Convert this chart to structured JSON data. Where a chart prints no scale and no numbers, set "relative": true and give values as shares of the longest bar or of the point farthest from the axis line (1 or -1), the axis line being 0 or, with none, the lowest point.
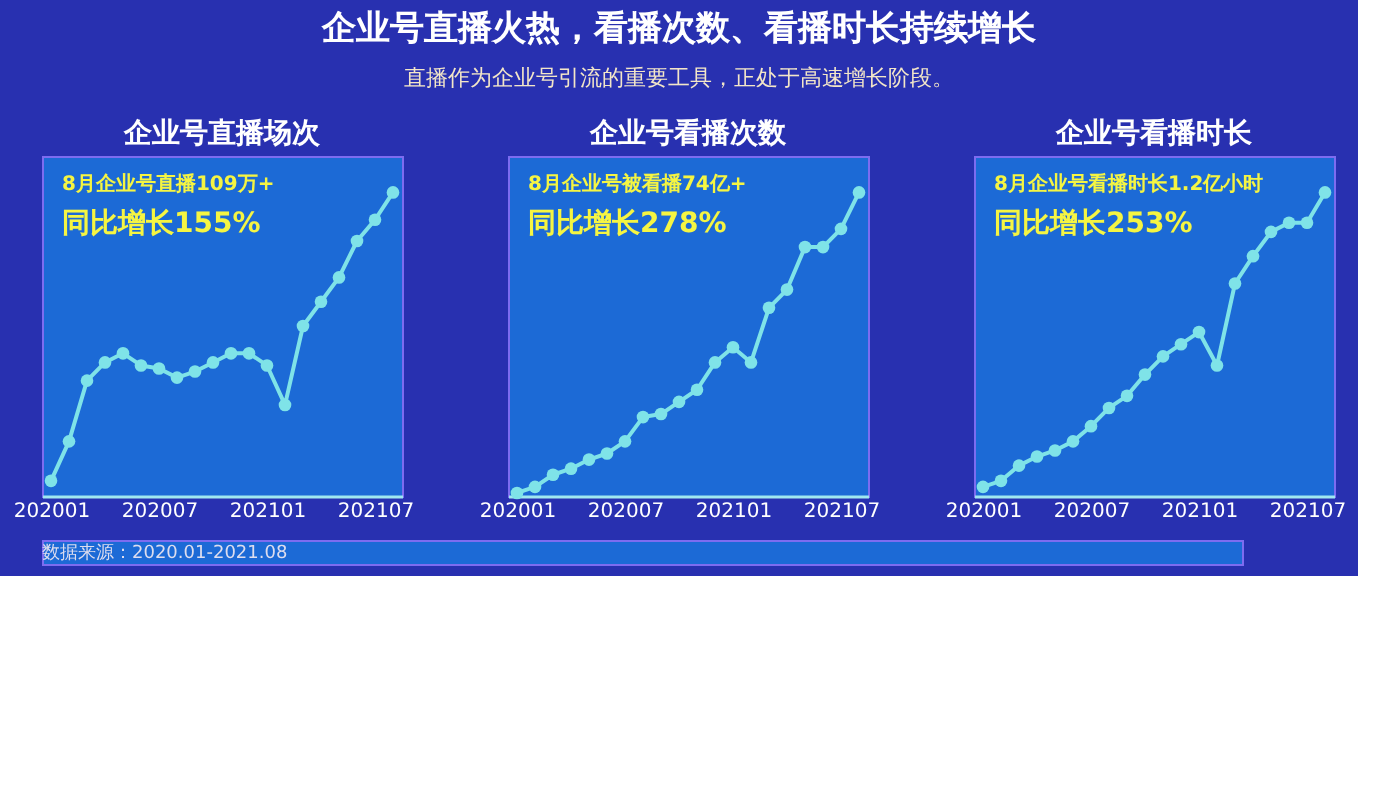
{
  "chart_data": [
    {
      "type": "other",
      "title": "企业号直播火热，看播次数、看播时长持续增长",
      "subtitle": "直播作为企业号引流的重要工具，正处于高速增长阶段。",
      "annotations": [
        "数据来源：2020.01-2021.08"
      ]
    },
    {
      "type": "line",
      "title": "企业号直播场次",
      "relative": true,
      "marker": "circle",
      "color": "#7fe3e8",
      "annotations": [
        "8月企业号直播109万+",
        "同比增长155%"
      ],
      "categories": [
        "202001",
        null,
        null,
        null,
        null,
        null,
        "202007",
        null,
        null,
        null,
        null,
        null,
        "202101",
        null,
        null,
        null,
        null,
        null,
        "202107",
        null
      ],
      "values": [
        0.05,
        0.18,
        0.38,
        0.44,
        0.47,
        0.43,
        0.42,
        0.39,
        0.41,
        0.44,
        0.47,
        0.47,
        0.43,
        0.3,
        0.56,
        0.64,
        0.72,
        0.84,
        0.91,
        1.0
      ]
    },
    {
      "type": "line",
      "title": "企业号看播次数",
      "relative": true,
      "marker": "circle",
      "color": "#7fe3e8",
      "annotations": [
        "8月企业号被看播74亿+",
        "同比增长278%"
      ],
      "categories": [
        "202001",
        null,
        null,
        null,
        null,
        null,
        "202007",
        null,
        null,
        null,
        null,
        null,
        "202101",
        null,
        null,
        null,
        null,
        null,
        "202107",
        null
      ],
      "values": [
        0.01,
        0.03,
        0.07,
        0.09,
        0.12,
        0.14,
        0.18,
        0.26,
        0.27,
        0.31,
        0.35,
        0.44,
        0.49,
        0.44,
        0.62,
        0.68,
        0.82,
        0.82,
        0.88,
        1.0
      ]
    },
    {
      "type": "line",
      "title": "企业号看播时长",
      "relative": true,
      "marker": "circle",
      "color": "#7fe3e8",
      "annotations": [
        "8月企业号看播时长1.2亿小时",
        "同比增长253%"
      ],
      "categories": [
        "202001",
        null,
        null,
        null,
        null,
        null,
        "202007",
        null,
        null,
        null,
        null,
        null,
        "202101",
        null,
        null,
        null,
        null,
        null,
        "202107",
        null
      ],
      "values": [
        0.03,
        0.05,
        0.1,
        0.13,
        0.15,
        0.18,
        0.23,
        0.29,
        0.33,
        0.4,
        0.46,
        0.5,
        0.54,
        0.43,
        0.7,
        0.79,
        0.87,
        0.9,
        0.9,
        1.0
      ]
    }
  ]
}
